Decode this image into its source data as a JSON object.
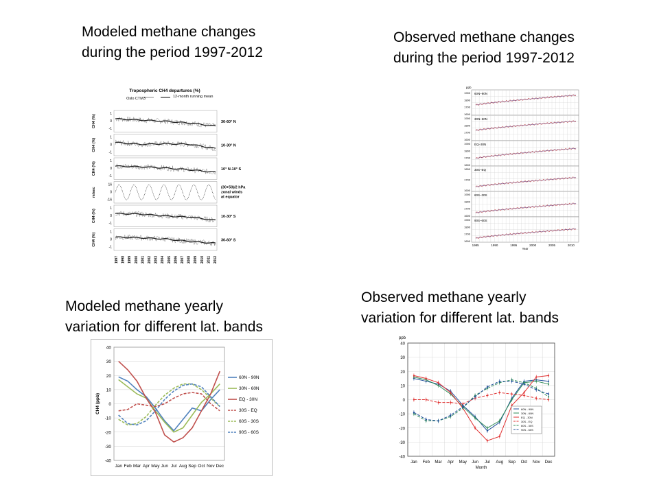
{
  "captions": {
    "top_left": [
      "Modeled methane changes",
      "during the period 1997-2012"
    ],
    "top_right": [
      "Observed methane changes",
      "during the period 1997-2012"
    ],
    "bottom_left": [
      "Modeled methane yearly",
      "variation for different lat. bands"
    ],
    "bottom_right": [
      "Observed methane yearly",
      "variation for different lat. bands"
    ]
  },
  "chart_data": [
    {
      "type": "line",
      "title": "Tropospheric CH4 departures (%)",
      "legend": [
        "Oslo CTM3",
        "12-month running mean"
      ],
      "x_ticks": [
        "1997",
        "1998",
        "1999",
        "2000",
        "2001",
        "2002",
        "2003",
        "2004",
        "2005",
        "2006",
        "2007",
        "2008",
        "2009",
        "2010",
        "2011",
        "2012"
      ],
      "panels": [
        {
          "ylabel": "CH4 (%)",
          "band": "30-60° N",
          "ticks": [
            "1",
            "0",
            "-1"
          ],
          "trend": [
            0.4,
            0.2,
            0.0,
            -0.3,
            -0.8
          ]
        },
        {
          "ylabel": "CH4 (%)",
          "band": "10-30° N",
          "ticks": [
            "1",
            "0",
            "-1"
          ],
          "trend": [
            0.4,
            0.1,
            0.2,
            0.1,
            -0.6
          ]
        },
        {
          "ylabel": "CH4 (%)",
          "band": "10° N-10° S",
          "ticks": [
            "1",
            "0",
            "-1"
          ],
          "trend": [
            0.4,
            0.3,
            0.1,
            -0.2,
            -0.6
          ]
        },
        {
          "ylabel": "m/sec",
          "band": "(30+50)/2 hPa zonal winds at equator",
          "ticks": [
            "16",
            "0",
            "-16"
          ],
          "trend": []
        },
        {
          "ylabel": "CH4 (%)",
          "band": "10-30° S",
          "ticks": [
            "1",
            "0",
            "-1"
          ],
          "trend": [
            0.4,
            0.3,
            0.0,
            -0.2,
            -0.7
          ]
        },
        {
          "ylabel": "CH4 (%)",
          "band": "30-60° S",
          "ticks": [
            "1",
            "0",
            "-1"
          ],
          "trend": [
            0.4,
            0.3,
            0.1,
            -0.3,
            -0.6
          ]
        }
      ]
    },
    {
      "type": "line",
      "ylabel": "ppb",
      "xlabel": "Year",
      "x_ticks": [
        "1985",
        "1990",
        "1995",
        "2000",
        "2005",
        "2010"
      ],
      "x_range": [
        1984,
        2012
      ],
      "panels": [
        {
          "band": "60N–90N",
          "ticks": [
            "1900",
            "1800",
            "1700",
            "1600"
          ],
          "start": 1720,
          "end": 1880
        },
        {
          "band": "30N–60N",
          "ticks": [
            "1900",
            "1800",
            "1700",
            "1600"
          ],
          "start": 1720,
          "end": 1870
        },
        {
          "band": "EQ–30N",
          "ticks": [
            "1900",
            "1800",
            "1700",
            "1600"
          ],
          "start": 1680,
          "end": 1840
        },
        {
          "band": "30S–EQ",
          "ticks": [
            "1800",
            "1700",
            "1600"
          ],
          "start": 1630,
          "end": 1780
        },
        {
          "band": "60S–30S",
          "ticks": [
            "1900",
            "1800",
            "1700",
            "1600"
          ],
          "start": 1620,
          "end": 1770
        },
        {
          "band": "90S–60S",
          "ticks": [
            "1900",
            "1800",
            "1700",
            "1600"
          ],
          "start": 1620,
          "end": 1770
        }
      ]
    },
    {
      "type": "line",
      "categories": [
        "Jan",
        "Feb",
        "Mar",
        "Apr",
        "May",
        "Jun",
        "Jul",
        "Aug",
        "Sep",
        "Oct",
        "Nov",
        "Dec"
      ],
      "ylabel": "CH4 (ppb)",
      "ylim": [
        -40,
        40
      ],
      "y_ticks": [
        "40",
        "30",
        "20",
        "10",
        "0",
        "-10",
        "-20",
        "-30",
        "-40"
      ],
      "series": [
        {
          "name": "60N - 90N",
          "color": "#4f81bd",
          "dash": false,
          "values": [
            19,
            16,
            10,
            5,
            -3,
            -12,
            -19,
            -11,
            -3,
            -5,
            3,
            10
          ]
        },
        {
          "name": "30N - 60N",
          "color": "#9bbb59",
          "dash": false,
          "values": [
            17,
            12,
            7,
            4,
            -5,
            -13,
            -20,
            -17,
            -8,
            1,
            7,
            14
          ]
        },
        {
          "name": "EQ - 30N",
          "color": "#c0504d",
          "dash": false,
          "values": [
            30,
            24,
            16,
            4,
            -6,
            -22,
            -27,
            -24,
            -17,
            -5,
            7,
            23
          ]
        },
        {
          "name": "30S - EQ",
          "color": "#c0504d",
          "dash": true,
          "values": [
            -5,
            -4,
            0,
            -1,
            -2,
            0,
            4,
            7,
            8,
            7,
            0,
            -5
          ]
        },
        {
          "name": "60S - 30S",
          "color": "#9bbb59",
          "dash": true,
          "values": [
            -11,
            -15,
            -14,
            -9,
            -1,
            6,
            11,
            14,
            14,
            10,
            4,
            -2
          ]
        },
        {
          "name": "90S - 60S",
          "color": "#4f81bd",
          "dash": true,
          "values": [
            -8,
            -14,
            -15,
            -12,
            -5,
            3,
            9,
            13,
            14,
            12,
            5,
            -2
          ]
        }
      ]
    },
    {
      "type": "line",
      "categories": [
        "Jan",
        "Feb",
        "Mar",
        "Apr",
        "May",
        "Jun",
        "Jul",
        "Aug",
        "Sep",
        "Oct",
        "Nov",
        "Dec"
      ],
      "ylabel": "ppb",
      "xlabel": "Month",
      "ylim": [
        -40,
        40
      ],
      "y_ticks": [
        "40",
        "30",
        "20",
        "10",
        "0",
        "-10",
        "-20",
        "-30",
        "-40"
      ],
      "series": [
        {
          "name": "60N - 90N",
          "color": "#1f4e9a",
          "dash": false,
          "values": [
            15,
            13,
            11,
            6,
            -4,
            -12,
            -22,
            -16,
            1,
            13,
            14,
            13
          ]
        },
        {
          "name": "30N - 60N",
          "color": "#2e8b57",
          "dash": false,
          "values": [
            16,
            14,
            10,
            4,
            -5,
            -13,
            -20,
            -15,
            0,
            12,
            13,
            11
          ]
        },
        {
          "name": "EQ - 30N",
          "color": "#e03030",
          "dash": false,
          "values": [
            17,
            15,
            12,
            5,
            -6,
            -20,
            -29,
            -26,
            -4,
            5,
            16,
            17
          ]
        },
        {
          "name": "30S - EQ",
          "color": "#e03030",
          "dash": true,
          "values": [
            0,
            0,
            -2,
            -2,
            -3,
            1,
            3,
            5,
            4,
            3,
            1,
            0
          ]
        },
        {
          "name": "60S - 30S",
          "color": "#2e8b57",
          "dash": true,
          "values": [
            -10,
            -15,
            -15,
            -12,
            -6,
            3,
            8,
            12,
            14,
            12,
            8,
            2
          ]
        },
        {
          "name": "90S - 60S",
          "color": "#1f4e9a",
          "dash": true,
          "values": [
            -9,
            -14,
            -15,
            -11,
            -5,
            2,
            9,
            13,
            13,
            11,
            7,
            4
          ]
        }
      ]
    }
  ]
}
